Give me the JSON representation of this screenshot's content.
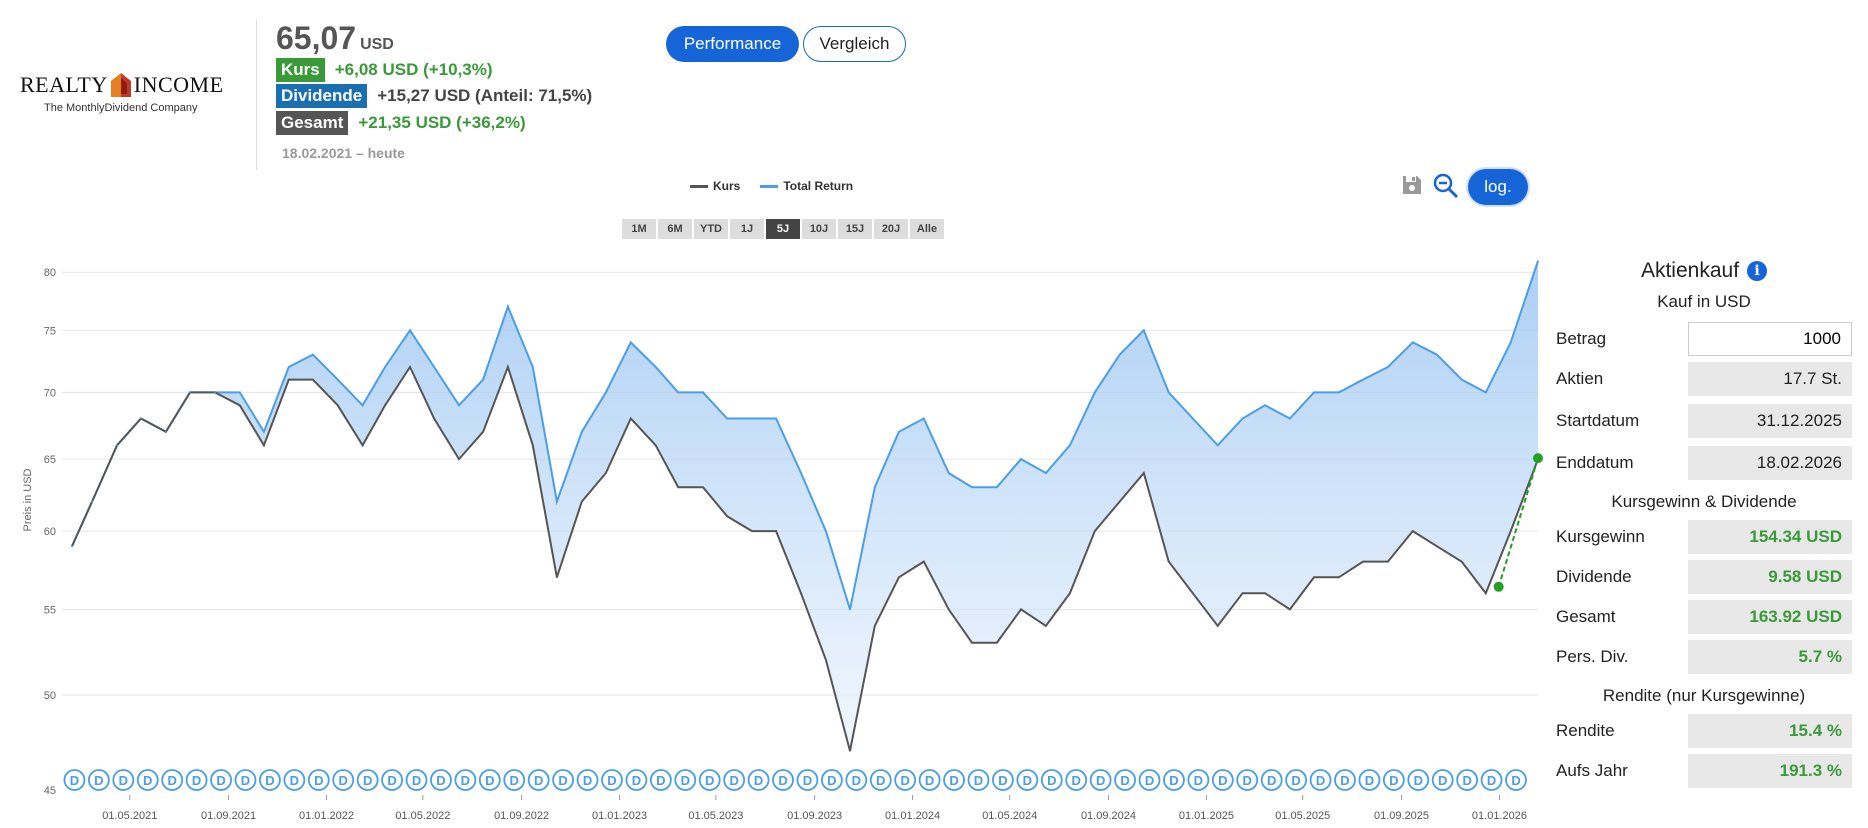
{
  "header": {
    "logo_text_left": "REALTY",
    "logo_text_right": "INCOME",
    "logo_tagline": "The MonthlyDividend Company",
    "price": "65,07",
    "currency": "USD",
    "kurs_label": "Kurs",
    "kurs_value": "+6,08 USD (+10,3%)",
    "dividende_label": "Dividende",
    "dividende_value": "+15,27 USD (Anteil: 71,5%)",
    "gesamt_label": "Gesamt",
    "gesamt_value": "+21,35 USD (+36,2%)",
    "date_range": "18.02.2021 – heute",
    "colors": {
      "kurs": "#3a9a3a",
      "dividende": "#1a6fb3",
      "gesamt": "#555555",
      "accent": "#1565d8"
    }
  },
  "tabs": {
    "performance": "Performance",
    "vergleich": "Vergleich"
  },
  "legend": {
    "kurs": "Kurs",
    "total_return": "Total Return"
  },
  "range_buttons": [
    "1M",
    "6M",
    "YTD",
    "1J",
    "5J",
    "10J",
    "15J",
    "20J",
    "Alle"
  ],
  "range_active": "5J",
  "toolbar": {
    "save_icon": "save-icon",
    "zoom_out_icon": "zoom-out-icon",
    "log_label": "log."
  },
  "chart_data": {
    "type": "line",
    "ylabel": "Preis in USD",
    "yscale": "log",
    "ylim": [
      45,
      82
    ],
    "yticks": [
      45,
      50,
      55,
      60,
      65,
      70,
      75,
      80
    ],
    "xticks": [
      "01.05.2021",
      "01.09.2021",
      "01.01.2022",
      "01.05.2022",
      "01.09.2022",
      "01.01.2023",
      "01.05.2023",
      "01.09.2023",
      "01.01.2024",
      "01.05.2024",
      "01.09.2024",
      "01.01.2025",
      "01.05.2025",
      "01.09.2025",
      "01.01.2026"
    ],
    "xrange": [
      "2021-02-18",
      "2026-02-18"
    ],
    "series": [
      {
        "name": "Kurs",
        "color": "#555555",
        "x": [
          "2021-02-18",
          "2021-03-15",
          "2021-04-15",
          "2021-05-15",
          "2021-06-15",
          "2021-07-15",
          "2021-08-15",
          "2021-09-15",
          "2021-10-15",
          "2021-11-15",
          "2021-12-15",
          "2022-01-15",
          "2022-02-15",
          "2022-03-15",
          "2022-04-15",
          "2022-05-15",
          "2022-06-15",
          "2022-07-15",
          "2022-08-15",
          "2022-09-15",
          "2022-10-15",
          "2022-11-15",
          "2022-12-15",
          "2023-01-15",
          "2023-02-15",
          "2023-03-15",
          "2023-04-15",
          "2023-05-15",
          "2023-06-15",
          "2023-07-15",
          "2023-08-15",
          "2023-09-15",
          "2023-10-15",
          "2023-11-15",
          "2023-12-15",
          "2024-01-15",
          "2024-02-15",
          "2024-03-15",
          "2024-04-15",
          "2024-05-15",
          "2024-06-15",
          "2024-07-15",
          "2024-08-15",
          "2024-09-15",
          "2024-10-15",
          "2024-11-15",
          "2024-12-15",
          "2025-01-15",
          "2025-02-15",
          "2025-03-15",
          "2025-04-15",
          "2025-05-15",
          "2025-06-15",
          "2025-07-15",
          "2025-08-15",
          "2025-09-15",
          "2025-10-15",
          "2025-11-15",
          "2025-12-15",
          "2026-01-15",
          "2026-02-18"
        ],
        "y": [
          59,
          62,
          66,
          68,
          67,
          70,
          70,
          69,
          66,
          71,
          71,
          69,
          66,
          69,
          72,
          68,
          65,
          67,
          72,
          66,
          57,
          62,
          64,
          68,
          66,
          63,
          63,
          61,
          60,
          60,
          56,
          52,
          47,
          54,
          57,
          58,
          55,
          53,
          53,
          55,
          54,
          56,
          60,
          62,
          64,
          58,
          56,
          54,
          56,
          56,
          55,
          57,
          57,
          58,
          58,
          60,
          59,
          58,
          56,
          60,
          65
        ]
      },
      {
        "name": "Total Return",
        "color": "#4a9de8",
        "x": [
          "2021-02-18",
          "2021-03-15",
          "2021-04-15",
          "2021-05-15",
          "2021-06-15",
          "2021-07-15",
          "2021-08-15",
          "2021-09-15",
          "2021-10-15",
          "2021-11-15",
          "2021-12-15",
          "2022-01-15",
          "2022-02-15",
          "2022-03-15",
          "2022-04-15",
          "2022-05-15",
          "2022-06-15",
          "2022-07-15",
          "2022-08-15",
          "2022-09-15",
          "2022-10-15",
          "2022-11-15",
          "2022-12-15",
          "2023-01-15",
          "2023-02-15",
          "2023-03-15",
          "2023-04-15",
          "2023-05-15",
          "2023-06-15",
          "2023-07-15",
          "2023-08-15",
          "2023-09-15",
          "2023-10-15",
          "2023-11-15",
          "2023-12-15",
          "2024-01-15",
          "2024-02-15",
          "2024-03-15",
          "2024-04-15",
          "2024-05-15",
          "2024-06-15",
          "2024-07-15",
          "2024-08-15",
          "2024-09-15",
          "2024-10-15",
          "2024-11-15",
          "2024-12-15",
          "2025-01-15",
          "2025-02-15",
          "2025-03-15",
          "2025-04-15",
          "2025-05-15",
          "2025-06-15",
          "2025-07-15",
          "2025-08-15",
          "2025-09-15",
          "2025-10-15",
          "2025-11-15",
          "2025-12-15",
          "2026-01-15",
          "2026-02-18"
        ],
        "y": [
          59,
          62,
          66,
          68,
          67,
          70,
          70,
          70,
          67,
          72,
          73,
          71,
          69,
          72,
          75,
          72,
          69,
          71,
          77,
          72,
          62,
          67,
          70,
          74,
          72,
          70,
          70,
          68,
          68,
          68,
          64,
          60,
          55,
          63,
          67,
          68,
          64,
          63,
          63,
          65,
          64,
          66,
          70,
          73,
          75,
          70,
          68,
          66,
          68,
          69,
          68,
          70,
          70,
          71,
          72,
          74,
          73,
          71,
          70,
          74,
          81
        ]
      }
    ],
    "dividend_marker_label": "D",
    "dividend_marker_count": 60,
    "annotation_points": [
      {
        "x": "2025-12-31",
        "y": 56.4
      },
      {
        "x": "2026-02-18",
        "y": 65.07
      }
    ]
  },
  "panel": {
    "title": "Aktienkauf",
    "subtitle": "Kauf in USD",
    "betrag_label": "Betrag",
    "betrag_value": "1000",
    "aktien_label": "Aktien",
    "aktien_value": "17.7 St.",
    "startdatum_label": "Startdatum",
    "startdatum_value": "31.12.2025",
    "enddatum_label": "Enddatum",
    "enddatum_value": "18.02.2026",
    "section_gain": "Kursgewinn & Dividende",
    "kursgewinn_label": "Kursgewinn",
    "kursgewinn_value": "154.34 USD",
    "dividende_label": "Dividende",
    "dividende_value": "9.58 USD",
    "gesamt_label": "Gesamt",
    "gesamt_value": "163.92 USD",
    "persdiv_label": "Pers. Div.",
    "persdiv_value": "5.7 %",
    "section_rendite": "Rendite (nur Kursgewinne)",
    "rendite_label": "Rendite",
    "rendite_value": "15.4 %",
    "aufsjahr_label": "Aufs Jahr",
    "aufsjahr_value": "191.3 %"
  }
}
